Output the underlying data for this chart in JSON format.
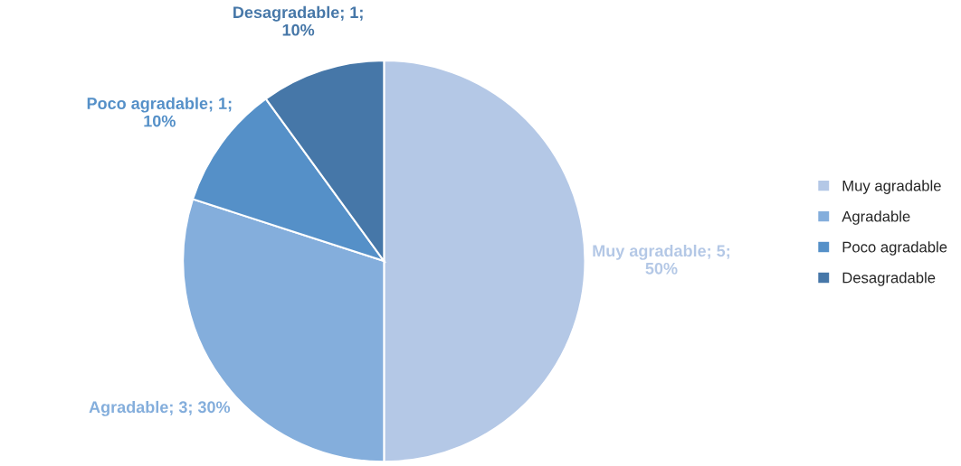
{
  "chart_data": {
    "type": "pie",
    "categories": [
      "Muy agradable",
      "Agradable",
      "Poco agradable",
      "Desagradable"
    ],
    "values": [
      5,
      3,
      1,
      1
    ],
    "colors": [
      "#b4c8e6",
      "#84aedc",
      "#5590c8",
      "#4677a8"
    ],
    "value_labels": [
      "Muy agradable; 5;\n50%",
      "Agradable; 3; 30%",
      "Poco agradable; 1;\n10%",
      "Desagradable; 1;\n10%"
    ],
    "legend": "right"
  }
}
